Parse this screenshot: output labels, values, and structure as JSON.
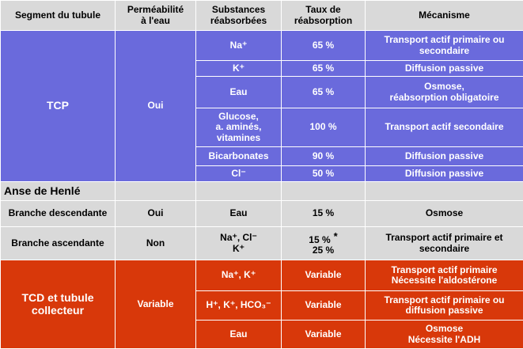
{
  "headers": {
    "segment": "Segment du tubule",
    "permeabilite": "Perméabilité\nà l'eau",
    "substances": "Substances\nréabsorbées",
    "taux": "Taux de\nréabsorption",
    "mecanisme": "Mécanisme"
  },
  "tcp": {
    "segment": "TCP",
    "permeabilite": "Oui",
    "rows": [
      {
        "substance": "Na⁺",
        "taux": "65 %",
        "mecanisme": "Transport actif primaire ou\nsecondaire"
      },
      {
        "substance": "K⁺",
        "taux": "65 %",
        "mecanisme": "Diffusion passive"
      },
      {
        "substance": "Eau",
        "taux": "65 %",
        "mecanisme": "Osmose,\nréabsorption obligatoire"
      },
      {
        "substance": "Glucose,\na. aminés,\nvitamines",
        "taux": "100 %",
        "mecanisme": "Transport actif secondaire"
      },
      {
        "substance": "Bicarbonates",
        "taux": "90 %",
        "mecanisme": "Diffusion passive"
      },
      {
        "substance": "Cl⁻",
        "taux": "50 %",
        "mecanisme": "Diffusion passive"
      }
    ]
  },
  "henle": {
    "title": "Anse de Henlé",
    "descendante": {
      "segment": "Branche descendante",
      "permeabilite": "Oui",
      "substance": "Eau",
      "taux": "15 %",
      "mecanisme": "Osmose"
    },
    "ascendante": {
      "segment": "Branche ascendante",
      "permeabilite": "Non",
      "substance": "Na⁺, Cl⁻\nK⁺",
      "taux_1": "15 %",
      "taux_star": "*",
      "taux_2": "25 %",
      "mecanisme": "Transport actif primaire et\nsecondaire"
    }
  },
  "tcd": {
    "segment": "TCD et tubule\ncollecteur",
    "permeabilite": "Variable",
    "rows": [
      {
        "substance": "Na⁺, K⁺",
        "taux": "Variable",
        "mecanisme": "Transport actif primaire\nNécessite l'aldostérone"
      },
      {
        "substance": "H⁺, K⁺, HCO₃⁻",
        "taux": "Variable",
        "mecanisme": "Transport actif primaire ou\ndiffusion passive"
      },
      {
        "substance": "Eau",
        "taux": "Variable",
        "mecanisme": "Osmose\nNécessite l'ADH"
      }
    ]
  },
  "colors": {
    "blue": "#6a6adc",
    "grey": "#d9d9d9",
    "red": "#d8380a"
  }
}
